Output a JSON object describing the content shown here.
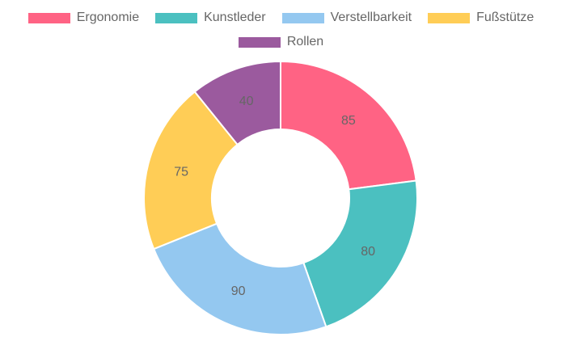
{
  "chart_data": {
    "type": "pie",
    "variant": "doughnut",
    "title": "",
    "legend_position": "top",
    "categories": [
      "Ergonomie",
      "Kunstleder",
      "Verstellbarkeit",
      "Fußstütze",
      "Rollen"
    ],
    "values": [
      85,
      80,
      90,
      75,
      40
    ],
    "colors": [
      "#ff6384",
      "#4bc0c0",
      "#94c8f0",
      "#ffcd56",
      "#9b5a9e"
    ],
    "data_labels": [
      "85",
      "80",
      "90",
      "75",
      "40"
    ]
  }
}
